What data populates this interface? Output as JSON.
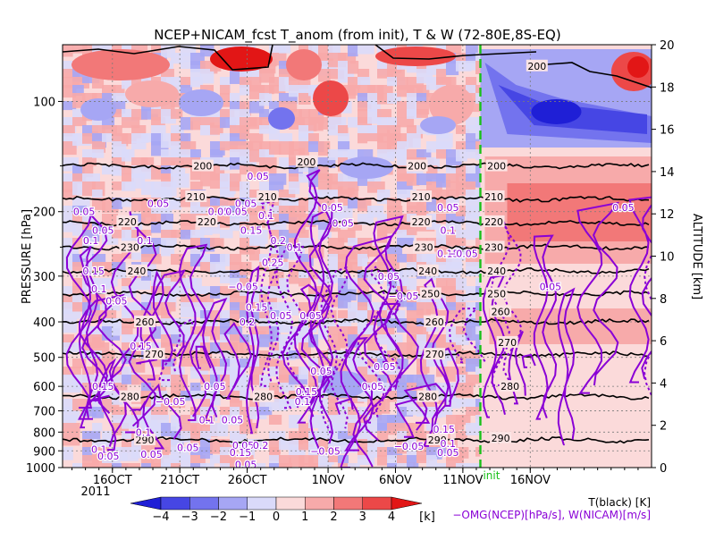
{
  "chart_data": {
    "type": "heatmap",
    "title": "NCEP+NICAM_fcst T_anom (from init), T & W  (72-80E,8S-EQ)",
    "y_left_label": "PRESSURE [hPa]",
    "y_right_label": "ALTITUDE [km]",
    "x_ticks": [
      "16OCT",
      "21OCT",
      "26OCT",
      "1NOV",
      "6NOV",
      "11NOV",
      "16NOV"
    ],
    "x_tick_days": [
      16,
      21,
      26,
      32,
      37,
      42,
      47
    ],
    "x_range_days": [
      12.3,
      56.0
    ],
    "year_label": "2011",
    "init_label": "init",
    "init_day": 43.3,
    "pressure_ticks": [
      1000,
      900,
      800,
      700,
      600,
      500,
      400,
      300,
      200,
      100
    ],
    "pressure_range": [
      1000,
      70
    ],
    "altitude_ticks": [
      0,
      2,
      4,
      6,
      8,
      10,
      12,
      14,
      16,
      18,
      20
    ],
    "colorbar": {
      "levels": [
        -4,
        -3,
        -2,
        -1,
        0,
        1,
        2,
        3,
        4
      ],
      "labels": [
        "−4",
        "−3",
        "−2",
        "−1",
        "0",
        "1",
        "2",
        "3",
        "4"
      ],
      "colors": [
        "#1f1fd6",
        "#4646e4",
        "#7373ee",
        "#a6a6f4",
        "#dadafa",
        "#fbdada",
        "#f7aaaa",
        "#f27878",
        "#ec4848",
        "#e21616"
      ],
      "unit": "[k]"
    },
    "legend_black": "T(black) [K]",
    "legend_purple": "−OMG(NCEP)[hPa/s], W(NICAM)[m/s]",
    "temperature_contours": [
      {
        "value": 200,
        "pressure": 150
      },
      {
        "value": 210,
        "pressure": 185
      },
      {
        "value": 220,
        "pressure": 215
      },
      {
        "value": 230,
        "pressure": 250
      },
      {
        "value": 240,
        "pressure": 290
      },
      {
        "value": 250,
        "pressure": 335
      },
      {
        "value": 260,
        "pressure": 400
      },
      {
        "value": 270,
        "pressure": 490
      },
      {
        "value": 280,
        "pressure": 640
      },
      {
        "value": 290,
        "pressure": 840
      }
    ],
    "temperature_labels": [
      {
        "text": "200",
        "day": 22.7,
        "pressure": 150
      },
      {
        "text": "200",
        "day": 30.4,
        "pressure": 146
      },
      {
        "text": "200",
        "day": 38.6,
        "pressure": 150
      },
      {
        "text": "200",
        "day": 44.5,
        "pressure": 150
      },
      {
        "text": "200",
        "day": 47.5,
        "pressure": 80
      },
      {
        "text": "210",
        "day": 22.2,
        "pressure": 182
      },
      {
        "text": "210",
        "day": 27.5,
        "pressure": 182
      },
      {
        "text": "210",
        "day": 38.9,
        "pressure": 182
      },
      {
        "text": "210",
        "day": 44.3,
        "pressure": 182
      },
      {
        "text": "220",
        "day": 17.1,
        "pressure": 213
      },
      {
        "text": "220",
        "day": 23.0,
        "pressure": 213
      },
      {
        "text": "220",
        "day": 38.9,
        "pressure": 213
      },
      {
        "text": "220",
        "day": 44.3,
        "pressure": 213
      },
      {
        "text": "230",
        "day": 17.3,
        "pressure": 250
      },
      {
        "text": "230",
        "day": 39.1,
        "pressure": 250
      },
      {
        "text": "230",
        "day": 44.3,
        "pressure": 250
      },
      {
        "text": "240",
        "day": 17.8,
        "pressure": 290
      },
      {
        "text": "240",
        "day": 39.4,
        "pressure": 290
      },
      {
        "text": "240",
        "day": 44.5,
        "pressure": 290
      },
      {
        "text": "250",
        "day": 39.6,
        "pressure": 335
      },
      {
        "text": "250",
        "day": 44.5,
        "pressure": 335
      },
      {
        "text": "260",
        "day": 18.4,
        "pressure": 400
      },
      {
        "text": "260",
        "day": 39.9,
        "pressure": 400
      },
      {
        "text": "260",
        "day": 44.8,
        "pressure": 375
      },
      {
        "text": "270",
        "day": 19.1,
        "pressure": 490
      },
      {
        "text": "270",
        "day": 39.9,
        "pressure": 490
      },
      {
        "text": "270",
        "day": 45.3,
        "pressure": 455
      },
      {
        "text": "280",
        "day": 17.3,
        "pressure": 640
      },
      {
        "text": "280",
        "day": 27.2,
        "pressure": 640
      },
      {
        "text": "280",
        "day": 39.4,
        "pressure": 640
      },
      {
        "text": "280",
        "day": 45.5,
        "pressure": 600
      },
      {
        "text": "290",
        "day": 18.4,
        "pressure": 840
      },
      {
        "text": "290",
        "day": 40.1,
        "pressure": 840
      },
      {
        "text": "290",
        "day": 44.8,
        "pressure": 830
      }
    ],
    "w_labels": [
      {
        "text": "0.05",
        "day": 13.9,
        "pressure": 200
      },
      {
        "text": "0.05",
        "day": 15.3,
        "pressure": 225
      },
      {
        "text": "0.05",
        "day": 19.4,
        "pressure": 190
      },
      {
        "text": "0.1",
        "day": 14.4,
        "pressure": 240
      },
      {
        "text": "0.1",
        "day": 18.4,
        "pressure": 240
      },
      {
        "text": "0.15",
        "day": 14.6,
        "pressure": 290
      },
      {
        "text": "0.1",
        "day": 15.0,
        "pressure": 325
      },
      {
        "text": "0.05",
        "day": 16.3,
        "pressure": 350
      },
      {
        "text": "0.15",
        "day": 18.1,
        "pressure": 465
      },
      {
        "text": "0.05",
        "day": 26.8,
        "pressure": 160
      },
      {
        "text": "0.05",
        "day": 25.9,
        "pressure": 190
      },
      {
        "text": "0.05",
        "day": 23.9,
        "pressure": 200
      },
      {
        "text": "0.05",
        "day": 25.2,
        "pressure": 200
      },
      {
        "text": "0.1",
        "day": 27.4,
        "pressure": 205
      },
      {
        "text": "0.15",
        "day": 26.3,
        "pressure": 225
      },
      {
        "text": "0.2",
        "day": 28.3,
        "pressure": 240
      },
      {
        "text": "0.1",
        "day": 29.5,
        "pressure": 250
      },
      {
        "text": "0.25",
        "day": 27.9,
        "pressure": 275
      },
      {
        "text": "−0.05",
        "day": 25.7,
        "pressure": 320
      },
      {
        "text": "0.15",
        "day": 26.7,
        "pressure": 365
      },
      {
        "text": "0.05",
        "day": 28.5,
        "pressure": 385
      },
      {
        "text": "0.2",
        "day": 26.0,
        "pressure": 400
      },
      {
        "text": "0.05",
        "day": 23.6,
        "pressure": 600
      },
      {
        "text": "0.1",
        "day": 23.0,
        "pressure": 740
      },
      {
        "text": "0.05",
        "day": 24.9,
        "pressure": 740
      },
      {
        "text": "0.05",
        "day": 21.6,
        "pressure": 880
      },
      {
        "text": "0.05",
        "day": 25.7,
        "pressure": 870
      },
      {
        "text": "0.05",
        "day": 25.9,
        "pressure": 980
      },
      {
        "text": "0.2",
        "day": 27.0,
        "pressure": 870
      },
      {
        "text": "0.15",
        "day": 25.5,
        "pressure": 910
      },
      {
        "text": "0.15",
        "day": 15.3,
        "pressure": 600
      },
      {
        "text": "0.1",
        "day": 18.3,
        "pressure": 800
      },
      {
        "text": "0.05",
        "day": 18.9,
        "pressure": 920
      },
      {
        "text": "0.1",
        "day": 15.0,
        "pressure": 890
      },
      {
        "text": "0.05",
        "day": 15.7,
        "pressure": 930
      },
      {
        "text": "−0.05",
        "day": 20.3,
        "pressure": 660
      },
      {
        "text": "0.05",
        "day": 32.3,
        "pressure": 195
      },
      {
        "text": "0.05",
        "day": 33.1,
        "pressure": 215
      },
      {
        "text": "0.05",
        "day": 30.7,
        "pressure": 385
      },
      {
        "text": "0.15",
        "day": 30.4,
        "pressure": 620
      },
      {
        "text": "0.1",
        "day": 30.1,
        "pressure": 660
      },
      {
        "text": "0.05",
        "day": 31.5,
        "pressure": 545
      },
      {
        "text": "0.05",
        "day": 35.3,
        "pressure": 600
      },
      {
        "text": "0.05",
        "day": 36.5,
        "pressure": 300
      },
      {
        "text": "−0.05",
        "day": 37.6,
        "pressure": 340
      },
      {
        "text": "0.05",
        "day": 36.2,
        "pressure": 530
      },
      {
        "text": "−0.05",
        "day": 31.8,
        "pressure": 900
      },
      {
        "text": "−0.05",
        "day": 38.0,
        "pressure": 875
      },
      {
        "text": "0.05",
        "day": 40.9,
        "pressure": 195
      },
      {
        "text": "0.1",
        "day": 40.9,
        "pressure": 225
      },
      {
        "text": "0.15",
        "day": 40.9,
        "pressure": 260
      },
      {
        "text": "−0.05",
        "day": 42.0,
        "pressure": 260
      },
      {
        "text": "0.15",
        "day": 40.6,
        "pressure": 785
      },
      {
        "text": "0.1",
        "day": 40.9,
        "pressure": 860
      },
      {
        "text": "0.05",
        "day": 40.9,
        "pressure": 910
      },
      {
        "text": "0.05",
        "day": 48.5,
        "pressure": 320
      },
      {
        "text": "0.05",
        "day": 53.9,
        "pressure": 195
      }
    ]
  }
}
